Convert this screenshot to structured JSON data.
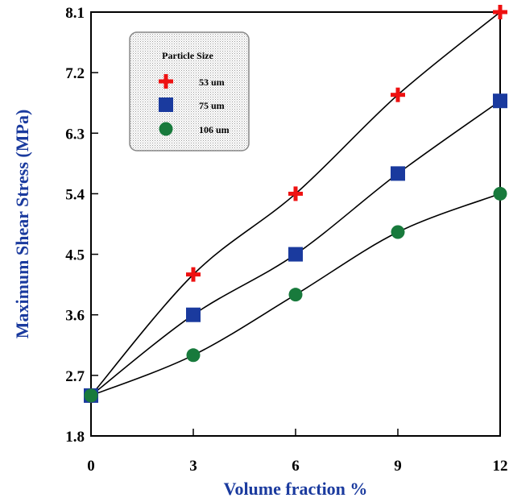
{
  "chart_data": {
    "type": "line",
    "xlabel": "Volume fraction %",
    "ylabel": "Maximum Shear Stress (MPa)",
    "x": [
      0,
      3,
      6,
      9,
      12
    ],
    "xlim": [
      0,
      12
    ],
    "ylim": [
      1.8,
      8.1
    ],
    "xticks": [
      "0",
      "3",
      "6",
      "9",
      "12"
    ],
    "yticks": [
      "1.8",
      "2.7",
      "3.6",
      "4.5",
      "5.4",
      "6.3",
      "7.2",
      "8.1"
    ],
    "legend": {
      "title": "Particle Size",
      "position": "top-left"
    },
    "series": [
      {
        "name": "53 um",
        "marker": "plus",
        "color": "#ee1111",
        "values": [
          2.4,
          4.2,
          5.4,
          6.87,
          8.1
        ]
      },
      {
        "name": "75 um",
        "marker": "square",
        "color": "#1a3a9e",
        "values": [
          2.4,
          3.6,
          4.5,
          5.7,
          6.78
        ]
      },
      {
        "name": "106 um",
        "marker": "circle",
        "color": "#187a3c",
        "values": [
          2.4,
          3.0,
          3.9,
          4.83,
          5.4
        ]
      }
    ],
    "grid": false
  }
}
